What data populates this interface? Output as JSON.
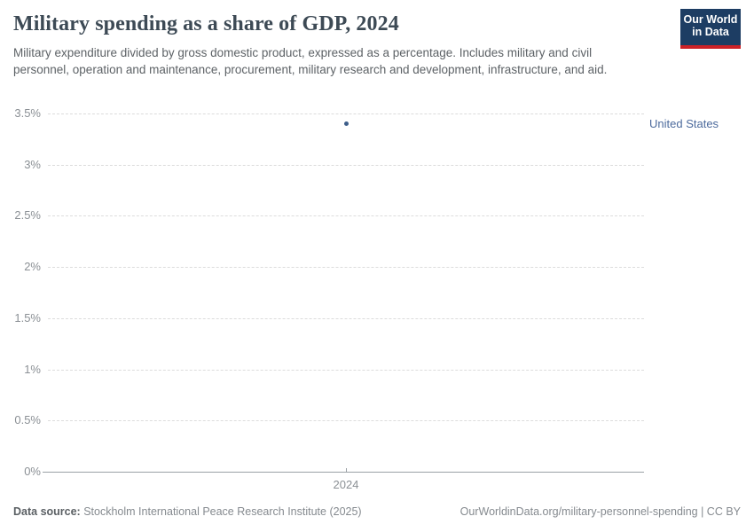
{
  "header": {
    "title": "Military spending as a share of GDP, 2024",
    "subtitle": "Military expenditure divided by gross domestic product, expressed as a percentage. Includes military and civil personnel, operation and maintenance, procurement, military research and development, infrastructure, and aid."
  },
  "logo": {
    "line1": "Our World",
    "line2": "in Data",
    "bg_color": "#1d3d63",
    "bar_color": "#cc2127"
  },
  "chart_data": {
    "type": "scatter",
    "title": "Military spending as a share of GDP, 2024",
    "x": [
      2024
    ],
    "series": [
      {
        "name": "United States",
        "values": [
          3.4
        ],
        "point_color": "#3d5e8a",
        "label_color": "#4c6a9c"
      }
    ],
    "ylim": [
      0,
      3.5
    ],
    "yticks": [
      {
        "value": 0,
        "label": "0%"
      },
      {
        "value": 0.5,
        "label": "0.5%"
      },
      {
        "value": 1,
        "label": "1%"
      },
      {
        "value": 1.5,
        "label": "1.5%"
      },
      {
        "value": 2,
        "label": "2%"
      },
      {
        "value": 2.5,
        "label": "2.5%"
      },
      {
        "value": 3,
        "label": "3%"
      },
      {
        "value": 3.5,
        "label": "3.5%"
      }
    ],
    "xticks": [
      {
        "value": 2024,
        "label": "2024"
      }
    ],
    "grid": "horizontal-dashed",
    "legend_position": "right-of-point"
  },
  "footer": {
    "source_label": "Data source:",
    "source_text": "Stockholm International Peace Research Institute (2025)",
    "link_text": "OurWorldinData.org/military-personnel-spending | CC BY"
  }
}
